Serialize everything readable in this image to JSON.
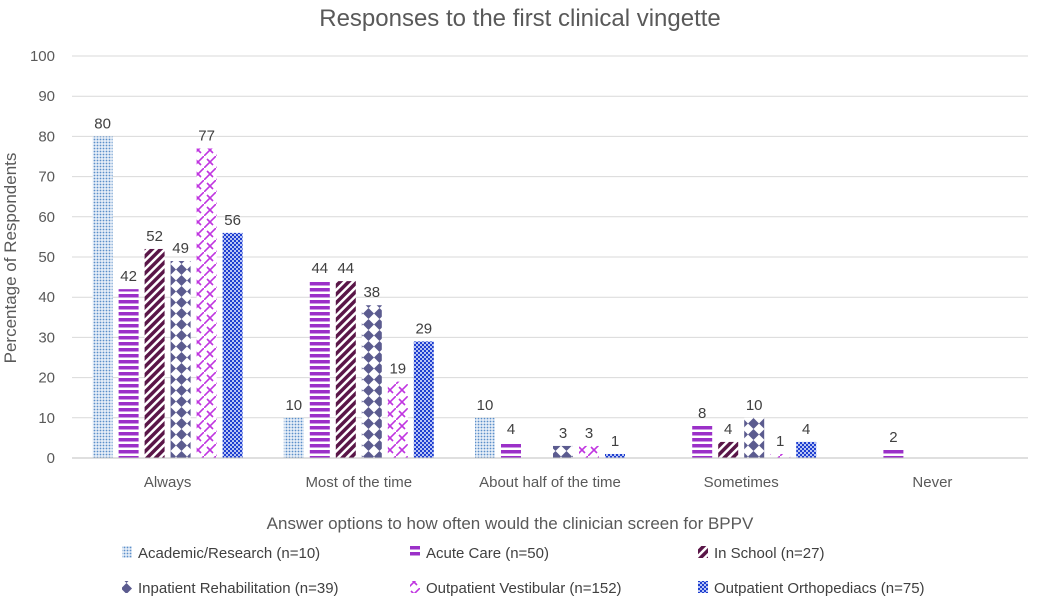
{
  "chart_data": {
    "type": "bar",
    "title": "Responses to the first clinical vingette",
    "xlabel": "Answer options to how often would the clinician screen for BPPV",
    "ylabel": "Percentage of Respondents",
    "ylim": [
      0,
      100
    ],
    "yticks": [
      0,
      10,
      20,
      30,
      40,
      50,
      60,
      70,
      80,
      90,
      100
    ],
    "grid": true,
    "legend_position": "bottom",
    "categories": [
      "Always",
      "Most of the time",
      "About half of the time",
      "Sometimes",
      "Never"
    ],
    "series": [
      {
        "name": "Academic/Research (n=10)",
        "color": "#5b8fc9",
        "pattern": "dots",
        "values": [
          80,
          10,
          10,
          null,
          null
        ]
      },
      {
        "name": "Acute Care (n=50)",
        "color": "#9b30c8",
        "pattern": "hstripes",
        "values": [
          42,
          44,
          4,
          8,
          2
        ]
      },
      {
        "name": "In School (n=27)",
        "color": "#5a1648",
        "pattern": "diagonal",
        "values": [
          52,
          44,
          null,
          4,
          null
        ]
      },
      {
        "name": "Inpatient Rehabilitation (n=39)",
        "color": "#5b5b8f",
        "pattern": "bowtie",
        "values": [
          49,
          38,
          3,
          10,
          null
        ]
      },
      {
        "name": "Outpatient Vestibular (n=152)",
        "color": "#c035e0",
        "pattern": "zigzag",
        "values": [
          77,
          19,
          3,
          1,
          null
        ]
      },
      {
        "name": "Outpatient Orthopediacs (n=75)",
        "color": "#1f3fd0",
        "pattern": "checker",
        "values": [
          56,
          29,
          1,
          4,
          null
        ]
      }
    ]
  }
}
